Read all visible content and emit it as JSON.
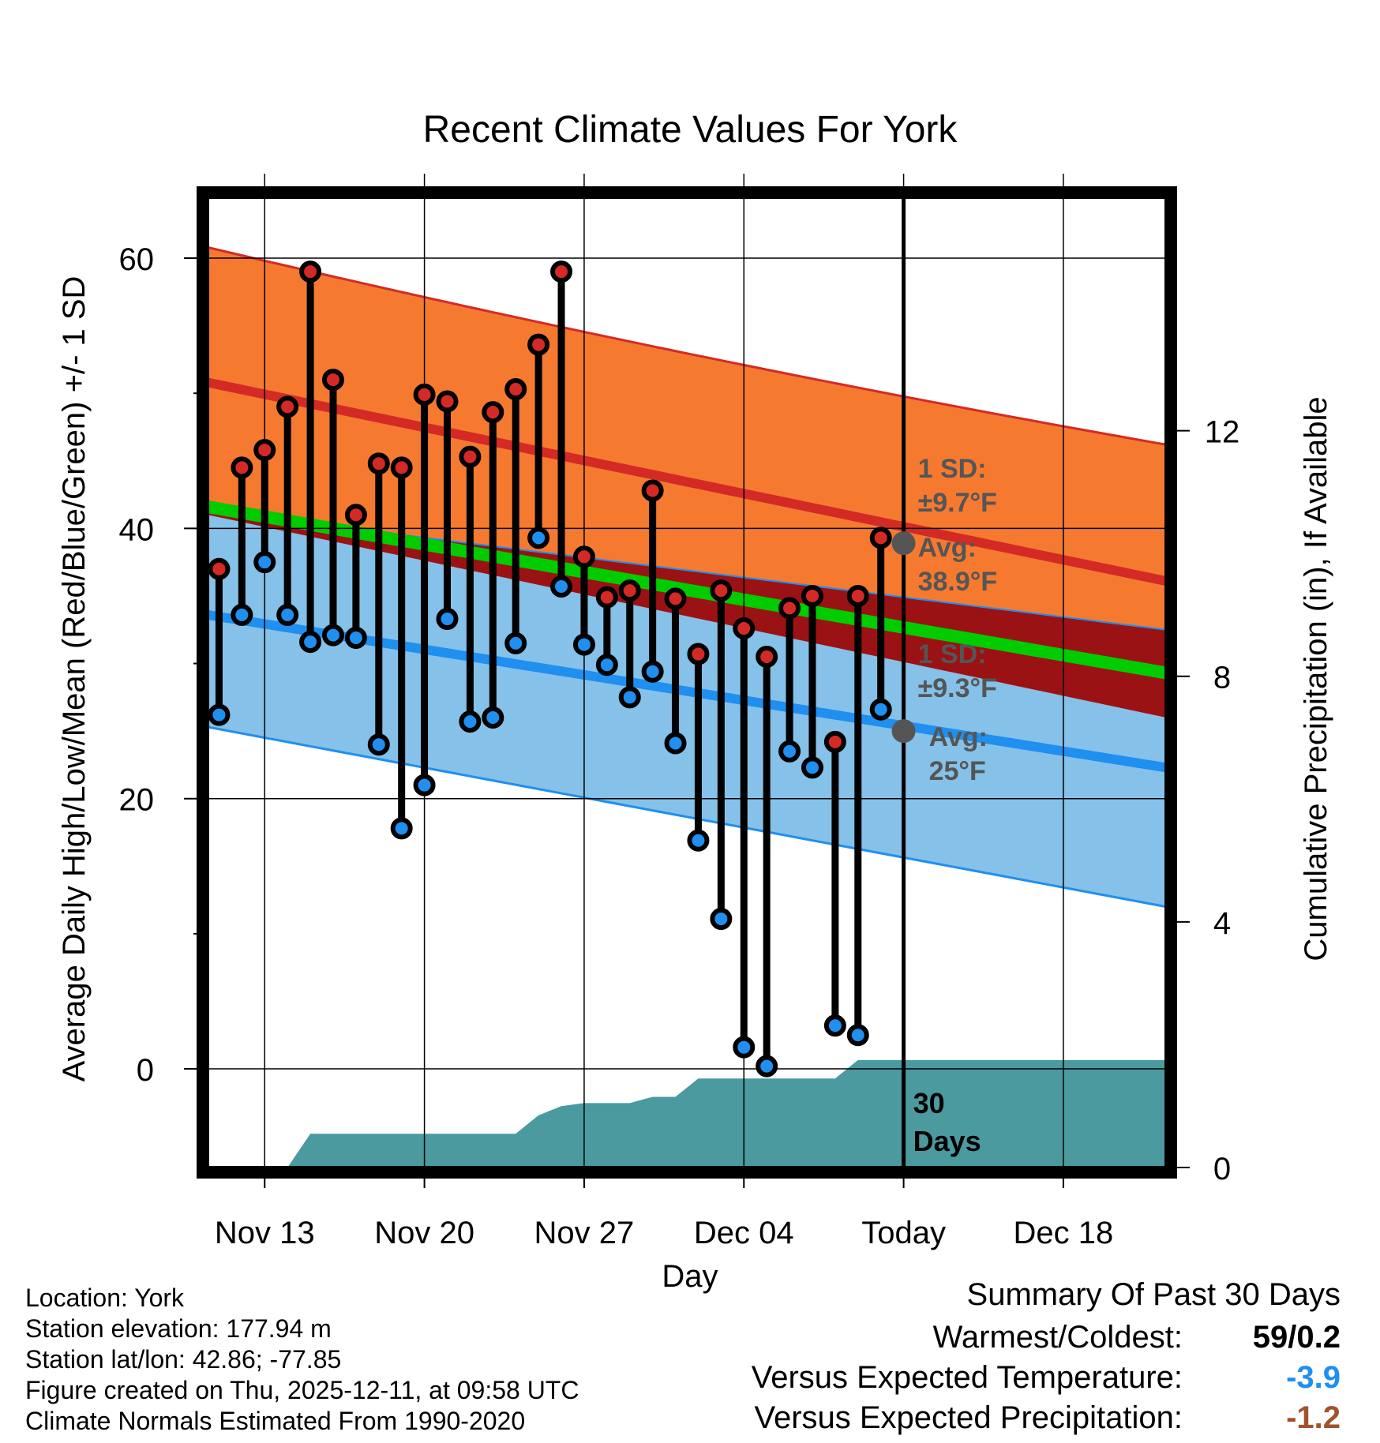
{
  "chart_data": {
    "type": "line",
    "title": "Recent Climate Values For York",
    "xlabel": "Day",
    "ylabel": "Average Daily High/Low/Mean (Red/Blue/Green) +/- 1 SD",
    "y2label": "Cumulative Precipitation (in), If Available",
    "ylim": [
      -7.3,
      64.5
    ],
    "y2lim": [
      0,
      15.8
    ],
    "xlim": [
      -2.5,
      39.5
    ],
    "yticks": [
      "0",
      "20",
      "40",
      "60"
    ],
    "y2ticks": [
      "0",
      "4",
      "8",
      "12"
    ],
    "xticks": [
      {
        "day": 0,
        "label": "Nov 13"
      },
      {
        "day": 7,
        "label": "Nov 20"
      },
      {
        "day": 14,
        "label": "Nov 27"
      },
      {
        "day": 21,
        "label": "Dec 04"
      },
      {
        "day": 28,
        "label": "Today"
      },
      {
        "day": 35,
        "label": "Dec 18"
      }
    ],
    "normals": {
      "high_mean": [
        50.8,
        36.1
      ],
      "high_sd_upper": [
        60.8,
        46.2
      ],
      "high_sd_lower": [
        41.3,
        32.5
      ],
      "mean": [
        41.6,
        29.3
      ],
      "low_mean": [
        33.6,
        22.3
      ],
      "low_sd_upper": [
        41.0,
        26.0
      ],
      "low_sd_lower": [
        25.3,
        12.0
      ]
    },
    "days": [
      -2,
      -1,
      0,
      1,
      2,
      3,
      4,
      5,
      6,
      7,
      8,
      9,
      10,
      11,
      12,
      13,
      14,
      15,
      16,
      17,
      18,
      19,
      20,
      21,
      22,
      23,
      24,
      25,
      26,
      27
    ],
    "highs": [
      37,
      44.5,
      45.8,
      49,
      59,
      51,
      41,
      44.8,
      44.5,
      49.9,
      49.4,
      45.3,
      48.6,
      50.3,
      53.6,
      59,
      37.9,
      34.9,
      35.4,
      42.8,
      34.8,
      30.7,
      35.4,
      32.6,
      30.5,
      34.1,
      35,
      24.2,
      35,
      39.3
    ],
    "lows": [
      26.2,
      33.6,
      37.5,
      33.6,
      31.6,
      32.1,
      31.9,
      24,
      17.8,
      21,
      33.3,
      25.7,
      26,
      31.5,
      39.3,
      35.7,
      31.4,
      29.9,
      27.5,
      29.4,
      24.1,
      16.9,
      11.1,
      1.6,
      0.2,
      23.5,
      22.3,
      3.2,
      2.5,
      26.6
    ],
    "precip_cumulative": [
      0,
      0,
      0,
      0,
      0.55,
      0.55,
      0.55,
      0.55,
      0.55,
      0.55,
      0.55,
      0.55,
      0.55,
      0.55,
      0.85,
      1.0,
      1.05,
      1.05,
      1.05,
      1.15,
      1.15,
      1.45,
      1.45,
      1.45,
      1.45,
      1.45,
      1.45,
      1.45,
      1.75,
      1.75
    ],
    "precip_extend_to": 39.5,
    "today": {
      "day": 28,
      "high_sd_label": "1 SD:",
      "high_sd_value": "±9.7°F",
      "high_avg_label": "Avg:",
      "high_avg_value": "38.9°F",
      "high_avg": 38.9,
      "low_sd_label": "1 SD:",
      "low_sd_value": "±9.3°F",
      "low_avg_label": "Avg:",
      "low_avg_value": "25°F",
      "low_avg": 25,
      "days_label_num": "30",
      "days_label_text": "Days"
    },
    "colors": {
      "high_band": "#f57a30",
      "high_line": "#d42a26",
      "low_band": "#85c1e8",
      "low_line": "#1f8ff0",
      "mean_line": "#00cc00",
      "overlap_band": "#9b1214",
      "precip": "#4a9aa0",
      "high_marker": "#d42a26",
      "low_marker": "#1f8ff0",
      "annot": "#555555"
    }
  },
  "footer": {
    "location": "Location: York",
    "elevation": "Station elevation: 177.94 m",
    "latlon": "Station lat/lon: 42.86; -77.85",
    "created": "Figure created on Thu, 2025-12-11, at 09:58 UTC",
    "normals": "Climate Normals Estimated From 1990-2020"
  },
  "summary": {
    "title": "Summary Of Past 30 Days",
    "rows": [
      {
        "label": "Warmest/Coldest:",
        "value": "59/0.2",
        "color": "#000000"
      },
      {
        "label": "Versus Expected Temperature:",
        "value": "-3.9",
        "color": "#1f8ff0"
      },
      {
        "label": "Versus Expected Precipitation:",
        "value": "-1.2",
        "color": "#a0522d"
      }
    ]
  }
}
